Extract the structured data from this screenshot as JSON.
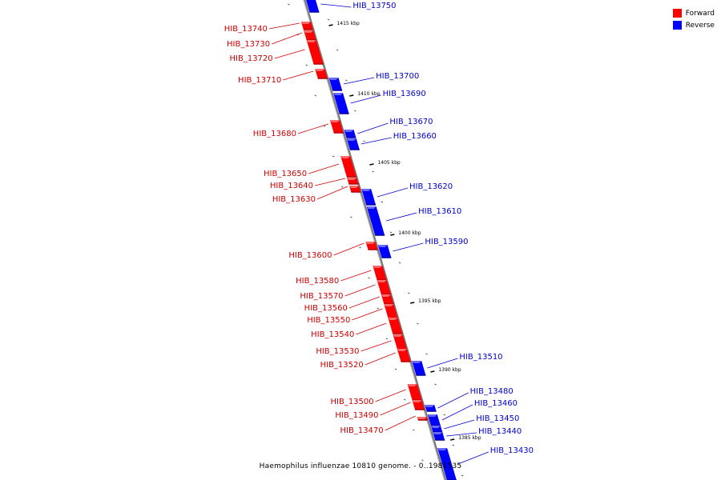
{
  "caption": "Haemophilus influenzae 10810 genome. - 0..1981535",
  "legend": [
    {
      "label": "Forward",
      "color": "#ff0000"
    },
    {
      "label": "Reverse",
      "color": "#0000ff"
    }
  ],
  "scale_ticks": [
    "1415 kbp",
    "1410 kbp",
    "1405 kbp",
    "1400 kbp",
    "1395 kbp",
    "1390 kbp",
    "1385 kbp"
  ],
  "forward_genes": [
    "HIB_13740",
    "HIB_13730",
    "HIB_13720",
    "HIB_13710",
    "HIB_13680",
    "HIB_13650",
    "HIB_13640",
    "HIB_13630",
    "HIB_13600",
    "HIB_13580",
    "HIB_13570",
    "HIB_13560",
    "HIB_13550",
    "HIB_13540",
    "HIB_13530",
    "HIB_13520",
    "HIB_13500",
    "HIB_13490",
    "HIB_13470"
  ],
  "reverse_genes": [
    "HIB_13750",
    "HIB_13700",
    "HIB_13690",
    "HIB_13670",
    "HIB_13660",
    "HIB_13620",
    "HIB_13610",
    "HIB_13590",
    "HIB_13510",
    "HIB_13480",
    "HIB_13460",
    "HIB_13450",
    "HIB_13440",
    "HIB_13430"
  ]
}
